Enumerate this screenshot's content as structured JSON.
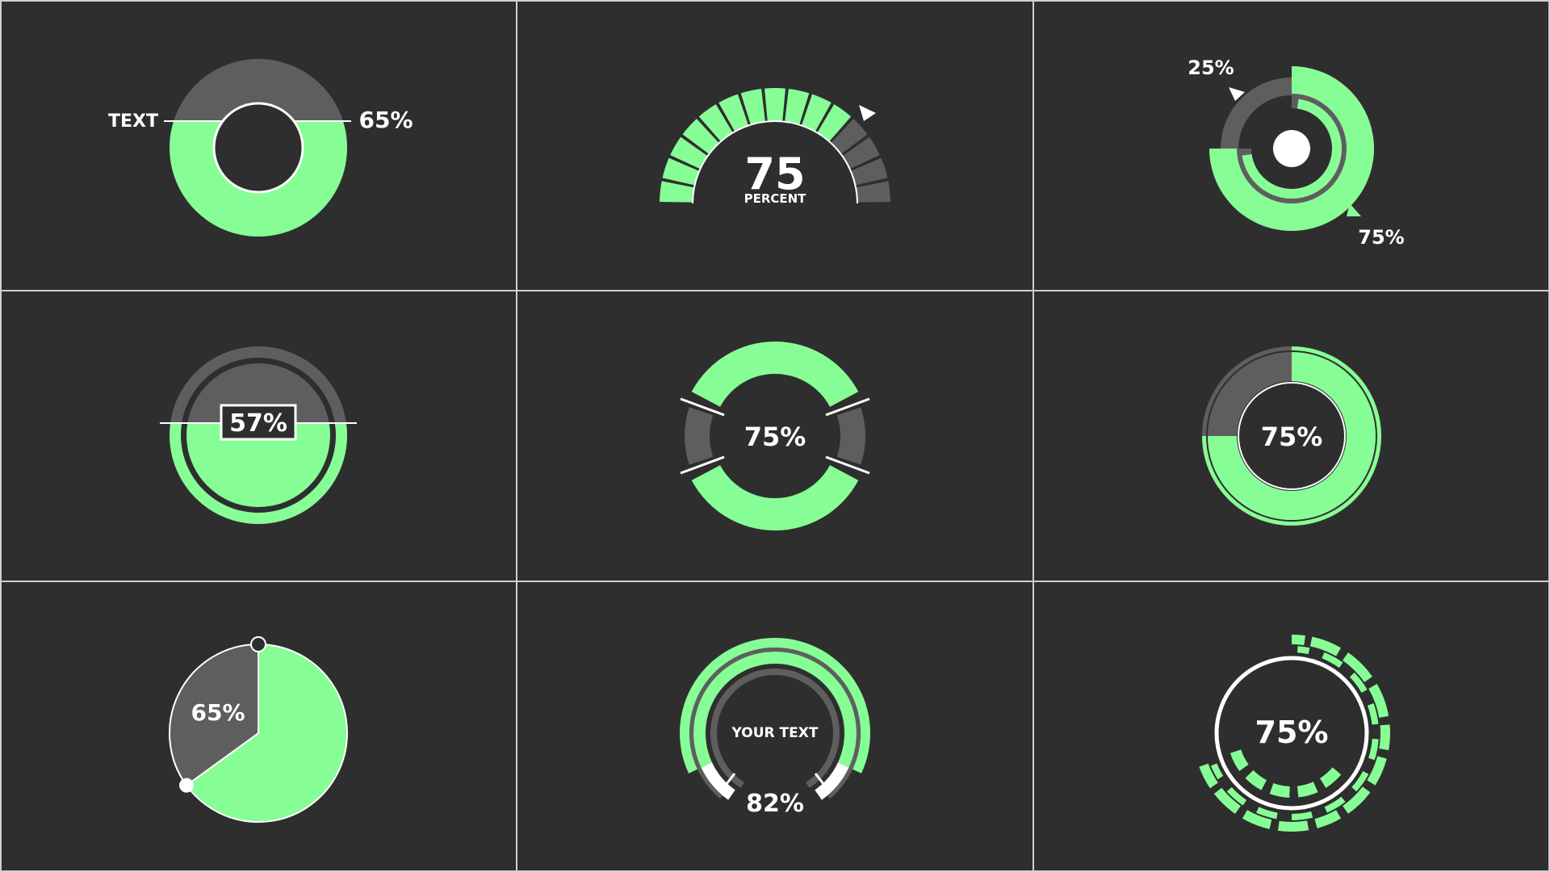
{
  "colors": {
    "background": "#2f2e2f",
    "accent": "#87fd95",
    "track": "#5f5e5f",
    "line": "#ffffff",
    "text": "#ffffff"
  },
  "chart_data": [
    {
      "id": "donut-split",
      "type": "pie",
      "values": [
        65,
        35
      ],
      "value_label": "65%",
      "side_label": "TEXT"
    },
    {
      "id": "segmented-gauge",
      "type": "bar",
      "value": 75,
      "value_label": "75",
      "unit_label": "PERCENT"
    },
    {
      "id": "ring-pair",
      "type": "pie",
      "values": [
        75,
        25
      ],
      "labels": [
        "75%",
        "25%"
      ]
    },
    {
      "id": "circle-fill",
      "type": "area",
      "value": 57,
      "value_label": "57%"
    },
    {
      "id": "ring-bars",
      "type": "pie",
      "value": 75,
      "value_label": "75%"
    },
    {
      "id": "ring-sector",
      "type": "pie",
      "values": [
        75,
        25
      ],
      "value_label": "75%"
    },
    {
      "id": "pie-knob",
      "type": "pie",
      "values": [
        65,
        35
      ],
      "value_label": "65%"
    },
    {
      "id": "arc-meter",
      "type": "pie",
      "value": 82,
      "value_label": "82%",
      "caption": "YOUR TEXT"
    },
    {
      "id": "dashed-rings",
      "type": "pie",
      "value": 75,
      "value_label": "75%"
    }
  ]
}
